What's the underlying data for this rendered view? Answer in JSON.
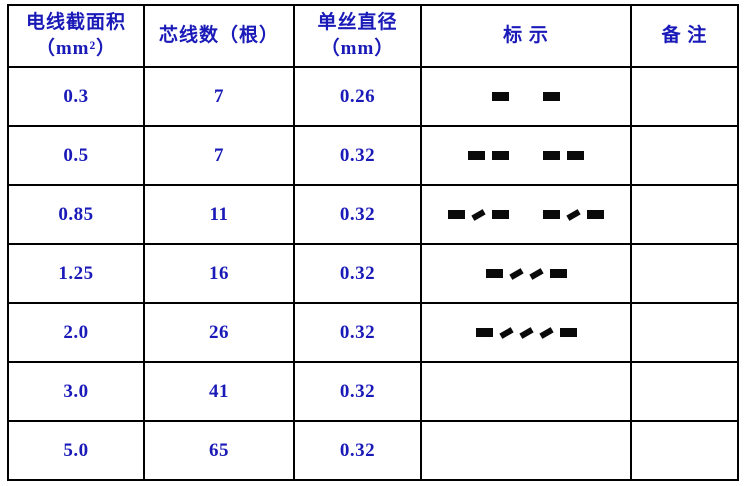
{
  "table": {
    "headers": [
      "电线截面积\n（mm²）",
      "芯线数（根）",
      "单丝直径\n（mm）",
      "标 示",
      "备 注"
    ],
    "rows": [
      {
        "area": "0.3",
        "cores": "7",
        "diameter": "0.26",
        "marks": [
          [
            "dash"
          ],
          [
            "dash"
          ]
        ],
        "remark": ""
      },
      {
        "area": "0.5",
        "cores": "7",
        "diameter": "0.32",
        "marks": [
          [
            "dash",
            "dash"
          ],
          [
            "dash",
            "dash"
          ]
        ],
        "remark": ""
      },
      {
        "area": "0.85",
        "cores": "11",
        "diameter": "0.32",
        "marks": [
          [
            "dash",
            "slash",
            "dash"
          ],
          [
            "dash",
            "slash",
            "dash"
          ]
        ],
        "remark": ""
      },
      {
        "area": "1.25",
        "cores": "16",
        "diameter": "0.32",
        "marks": [
          [
            "dash",
            "slash",
            "slash",
            "dash"
          ]
        ],
        "remark": ""
      },
      {
        "area": "2.0",
        "cores": "26",
        "diameter": "0.32",
        "marks": [
          [
            "dash",
            "slash",
            "slash",
            "slash",
            "dash"
          ]
        ],
        "remark": ""
      },
      {
        "area": "3.0",
        "cores": "41",
        "diameter": "0.32",
        "marks": [],
        "remark": ""
      },
      {
        "area": "5.0",
        "cores": "65",
        "diameter": "0.32",
        "marks": [],
        "remark": ""
      }
    ]
  },
  "colors": {
    "text": "#1a1ab8",
    "border": "#000000",
    "mark": "#0a0a0a",
    "background": "#ffffff"
  }
}
